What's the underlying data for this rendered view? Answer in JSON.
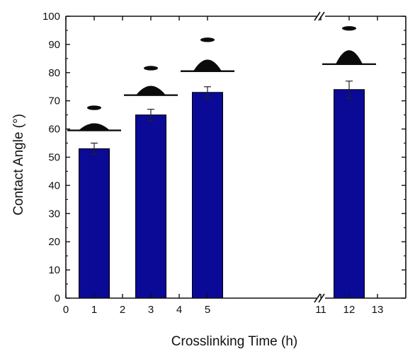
{
  "chart_data": {
    "type": "bar",
    "title": "",
    "xlabel": "Crosslinking Time (h)",
    "ylabel": "Contact Angle (°)",
    "ylim": [
      0,
      100
    ],
    "y_ticks": [
      "0",
      "10",
      "20",
      "30",
      "40",
      "50",
      "60",
      "70",
      "80",
      "90",
      "100"
    ],
    "x_tick_labels": [
      "0",
      "1",
      "2",
      "3",
      "4",
      "5",
      "11",
      "12",
      "13"
    ],
    "x_axis_break": "between 5 and 11",
    "categories": [
      "1",
      "3",
      "5",
      "12"
    ],
    "values": [
      53,
      65,
      73,
      74
    ],
    "errors": [
      2,
      2,
      2,
      3
    ],
    "bar_color": "#0a0a96",
    "grid": false,
    "legend": "none",
    "insets": [
      "droplet photo",
      "droplet photo",
      "droplet photo",
      "droplet photo"
    ]
  }
}
